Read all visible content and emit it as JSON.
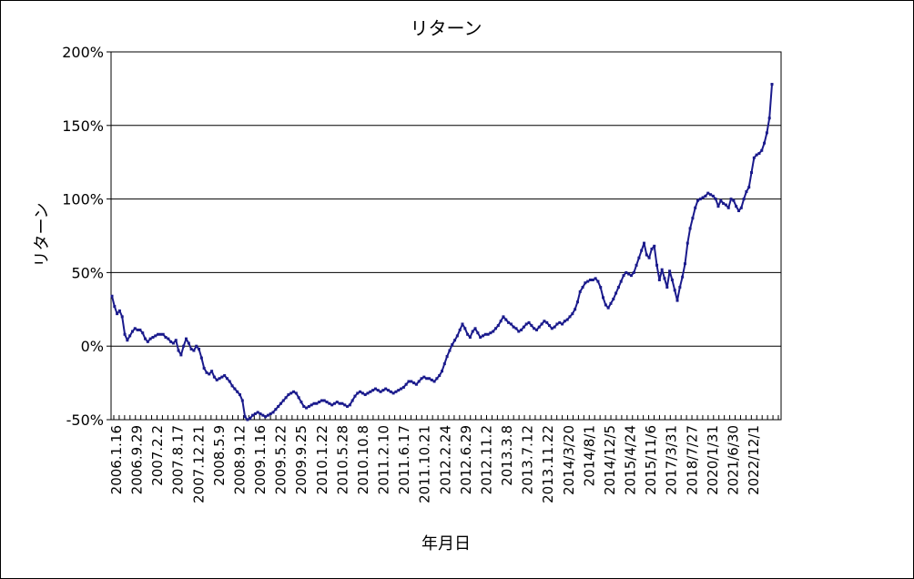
{
  "chart_data": {
    "type": "line",
    "title": "リターン",
    "xlabel": "年月日",
    "ylabel": "リターン",
    "ylim": [
      -50,
      200
    ],
    "yticks": [
      -50,
      0,
      50,
      100,
      150,
      200
    ],
    "ytick_labels": [
      "-50%",
      "0%",
      "50%",
      "100%",
      "150%",
      "200%"
    ],
    "grid": "horizontal",
    "legend": "none",
    "line_color": "#1a1a8c",
    "x_tick_labels": [
      "2006.1.16",
      "2006.9.29",
      "2007.2.2",
      "2007.8.17",
      "2007.12.21",
      "2008.5.9",
      "2008.9.12",
      "2009.1.16",
      "2009.5.22",
      "2009.9.25",
      "2010.1.22",
      "2010.5.28",
      "2010.10.8",
      "2011.2.10",
      "2011.6.17",
      "2011.10.21",
      "2012.2.24",
      "2012.6.29",
      "2012.11.2",
      "2013.3.8",
      "2013.7.12",
      "2013.11.22",
      "2014/3/20",
      "2014/8/1",
      "2014/12/5",
      "2015/4/24",
      "2015/11/6",
      "2017/3/31",
      "2018/7/27",
      "2020/1/31",
      "2021/6/30",
      "2022/12/1"
    ],
    "series": [
      {
        "values": [
          34,
          27,
          22,
          24,
          20,
          8,
          4,
          7,
          10,
          12,
          11,
          11,
          9,
          5,
          3,
          5,
          6,
          7,
          8,
          8,
          8,
          6,
          5,
          3,
          2,
          4,
          -3,
          -6,
          0,
          5,
          2,
          -2,
          -3,
          0,
          -2,
          -8,
          -15,
          -18,
          -19,
          -17,
          -21,
          -23,
          -22,
          -21,
          -20,
          -22,
          -24,
          -27,
          -29,
          -31,
          -33,
          -37,
          -48,
          -50,
          -49,
          -47,
          -46,
          -45,
          -46,
          -47,
          -48,
          -47,
          -46,
          -45,
          -43,
          -41,
          -39,
          -37,
          -35,
          -33,
          -32,
          -31,
          -32,
          -35,
          -38,
          -41,
          -42,
          -41,
          -40,
          -39,
          -39,
          -38,
          -37,
          -37,
          -38,
          -39,
          -40,
          -39,
          -38,
          -39,
          -39,
          -40,
          -41,
          -40,
          -37,
          -34,
          -32,
          -31,
          -32,
          -33,
          -32,
          -31,
          -30,
          -29,
          -30,
          -31,
          -30,
          -29,
          -30,
          -31,
          -32,
          -31,
          -30,
          -29,
          -28,
          -26,
          -24,
          -24,
          -25,
          -26,
          -24,
          -22,
          -21,
          -22,
          -22,
          -23,
          -24,
          -22,
          -20,
          -17,
          -12,
          -7,
          -3,
          1,
          4,
          7,
          11,
          15,
          12,
          8,
          6,
          10,
          12,
          9,
          6,
          7,
          8,
          8,
          9,
          10,
          12,
          14,
          17,
          20,
          18,
          16,
          15,
          13,
          12,
          10,
          11,
          13,
          15,
          16,
          14,
          12,
          11,
          13,
          15,
          17,
          16,
          14,
          12,
          13,
          15,
          16,
          15,
          17,
          18,
          20,
          22,
          25,
          30,
          37,
          40,
          43,
          44,
          45,
          45,
          46,
          44,
          40,
          33,
          28,
          26,
          29,
          32,
          36,
          40,
          44,
          48,
          50,
          49,
          48,
          50,
          55,
          60,
          65,
          70,
          62,
          60,
          66,
          68,
          55,
          45,
          52,
          46,
          40,
          51,
          45,
          38,
          31,
          40,
          47,
          56,
          70,
          80,
          87,
          94,
          99,
          100,
          101,
          102,
          104,
          103,
          102,
          100,
          95,
          99,
          97,
          96,
          94,
          100,
          99,
          95,
          92,
          94,
          100,
          105,
          108,
          118,
          128,
          130,
          131,
          133,
          138,
          145,
          155,
          178
        ]
      }
    ]
  }
}
